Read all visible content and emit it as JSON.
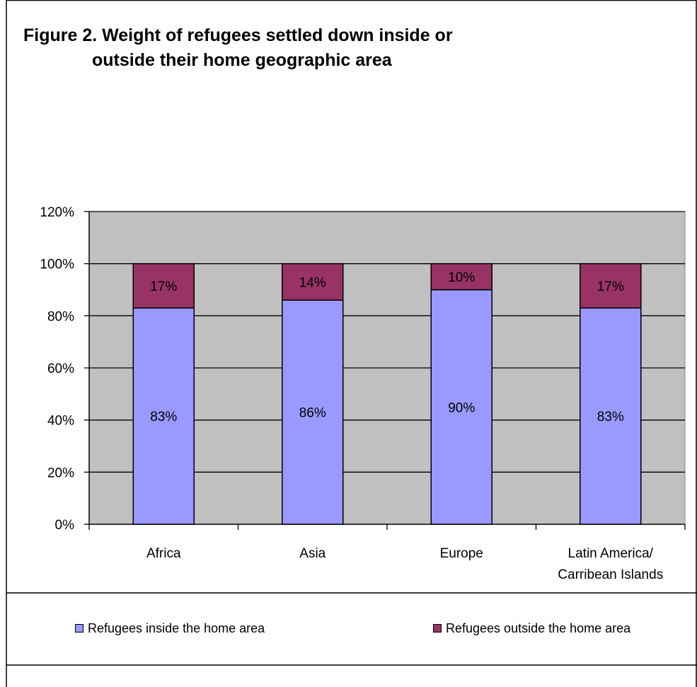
{
  "title_line1": "Figure 2. Weight of refugees settled down inside or",
  "title_line2": "outside their home geographic area",
  "colors": {
    "inside": "#9999ff",
    "outside": "#993366",
    "plot_bg": "#c0c0c0"
  },
  "chart_data": {
    "type": "bar",
    "stacked": true,
    "categories": [
      [
        "Africa"
      ],
      [
        "Asia"
      ],
      [
        "Europe"
      ],
      [
        "Latin America/",
        "Carribean Islands"
      ]
    ],
    "series": [
      {
        "name": "Refugees inside the home area",
        "values": [
          83,
          86,
          90,
          83
        ],
        "labels": [
          "83%",
          "86%",
          "90%",
          "83%"
        ]
      },
      {
        "name": "Refugees outside the home area",
        "values": [
          17,
          14,
          10,
          17
        ],
        "labels": [
          "17%",
          "14%",
          "10%",
          "17%"
        ]
      }
    ],
    "ylim": [
      0,
      120
    ],
    "yticks": [
      "0%",
      "20%",
      "40%",
      "60%",
      "80%",
      "100%",
      "120%"
    ],
    "grid": true,
    "legend_position": "bottom"
  }
}
